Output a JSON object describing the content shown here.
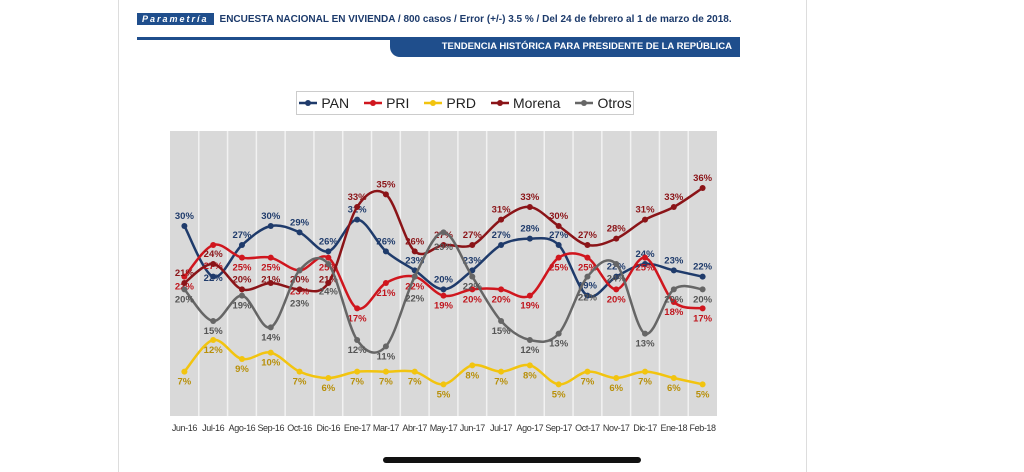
{
  "header": {
    "brand": "Parametría",
    "survey_info": "ENCUESTA NACIONAL EN VIVIENDA / 800 casos / Error (+/-) 3.5 % / Del 24 de febrero  al 1 de marzo de 2018.",
    "subtitle": "TENDENCIA HISTÓRICA PARA PRESIDENTE DE LA REPÚBLICA"
  },
  "chart_data": {
    "type": "line",
    "title": "TENDENCIA HISTÓRICA PARA PRESIDENTE DE LA REPÚBLICA",
    "xlabel": "",
    "ylabel": "",
    "ylim": [
      0,
      45
    ],
    "legend": "top-center",
    "grid": true,
    "categories": [
      "Jun-16",
      "Jul-16",
      "Ago-16",
      "Sep-16",
      "Oct-16",
      "Dic-16",
      "Ene-17",
      "Mar-17",
      "Abr-17",
      "May-17",
      "Jun-17",
      "Jul-17",
      "Ago-17",
      "Sep-17",
      "Oct-17",
      "Nov-17",
      "Dic-17",
      "Ene-18",
      "Feb-18"
    ],
    "series": [
      {
        "name": "PAN",
        "color": "#1f3b6b",
        "values": [
          30,
          22,
          27,
          30,
          29,
          26,
          31,
          26,
          23,
          20,
          23,
          27,
          28,
          27,
          19,
          22,
          24,
          23,
          22
        ]
      },
      {
        "name": "PRI",
        "color": "#d0161e",
        "values": [
          22,
          27,
          25,
          25,
          23,
          25,
          17,
          21,
          22,
          19,
          20,
          20,
          19,
          25,
          25,
          20,
          25,
          18,
          17
        ]
      },
      {
        "name": "PRD",
        "color": "#f2c40f",
        "values": [
          7,
          12,
          9,
          10,
          7,
          6,
          7,
          7,
          7,
          5,
          8,
          7,
          8,
          5,
          7,
          6,
          7,
          6,
          5
        ]
      },
      {
        "name": "Morena",
        "color": "#8b1418",
        "values": [
          21,
          24,
          20,
          21,
          20,
          21,
          33,
          35,
          26,
          27,
          27,
          31,
          33,
          30,
          27,
          28,
          31,
          33,
          36
        ]
      },
      {
        "name": "Otros",
        "color": "#666666",
        "values": [
          20,
          15,
          19,
          14,
          23,
          24,
          12,
          11,
          22,
          29,
          22,
          15,
          12,
          13,
          22,
          24,
          13,
          20,
          20
        ]
      }
    ]
  }
}
